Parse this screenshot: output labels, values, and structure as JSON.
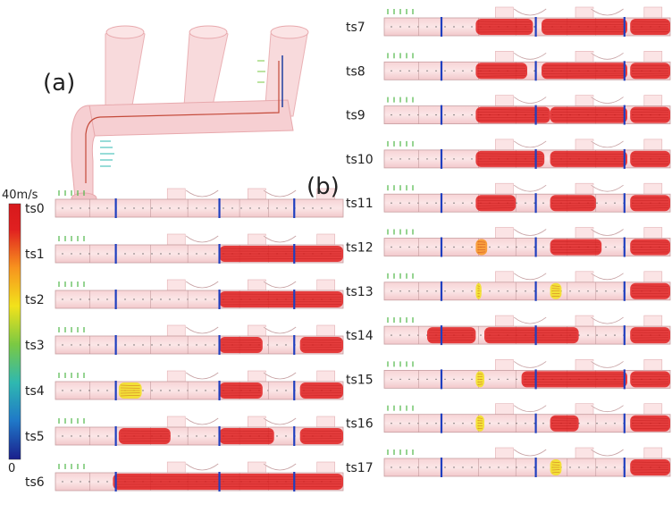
{
  "figure": {
    "panel_a_label": "(a)",
    "panel_b_label": "(b)"
  },
  "colorbar": {
    "max_label": "40m/s",
    "min_label": "0",
    "colors": [
      "#1a1f8c",
      "#1f78c8",
      "#2fb8b0",
      "#7ac943",
      "#f2e21b",
      "#f7931e",
      "#e02020",
      "#d7191c"
    ]
  },
  "timesteps": [
    {
      "label": "ts0",
      "flow": []
    },
    {
      "label": "ts1",
      "flow": [
        [
          0.57,
          1.0,
          1.0
        ]
      ]
    },
    {
      "label": "ts2",
      "flow": [
        [
          0.57,
          1.0,
          1.0
        ]
      ]
    },
    {
      "label": "ts3",
      "flow": [
        [
          0.57,
          0.72,
          1.0
        ],
        [
          0.85,
          1.0,
          1.0
        ]
      ]
    },
    {
      "label": "ts4",
      "flow": [
        [
          0.22,
          0.3,
          0.5
        ],
        [
          0.57,
          0.72,
          1.0
        ],
        [
          0.85,
          1.0,
          1.0
        ]
      ]
    },
    {
      "label": "ts5",
      "flow": [
        [
          0.22,
          0.4,
          0.9
        ],
        [
          0.57,
          0.76,
          1.0
        ],
        [
          0.85,
          1.0,
          1.0
        ]
      ]
    },
    {
      "label": "ts6",
      "flow": [
        [
          0.2,
          1.0,
          1.0
        ]
      ]
    },
    {
      "label": "ts7",
      "flow": [
        [
          0.32,
          0.52,
          1.0
        ],
        [
          0.55,
          0.85,
          1.0
        ],
        [
          0.86,
          1.0,
          1.0
        ]
      ]
    },
    {
      "label": "ts8",
      "flow": [
        [
          0.32,
          0.5,
          1.0
        ],
        [
          0.55,
          0.85,
          1.0
        ],
        [
          0.86,
          1.0,
          1.0
        ]
      ]
    },
    {
      "label": "ts9",
      "flow": [
        [
          0.32,
          0.58,
          1.0
        ],
        [
          0.58,
          0.85,
          1.0
        ],
        [
          0.86,
          1.0,
          1.0
        ]
      ]
    },
    {
      "label": "ts10",
      "flow": [
        [
          0.32,
          0.56,
          1.0
        ],
        [
          0.58,
          0.85,
          1.0
        ],
        [
          0.86,
          1.0,
          1.0
        ]
      ]
    },
    {
      "label": "ts11",
      "flow": [
        [
          0.32,
          0.46,
          1.0
        ],
        [
          0.58,
          0.74,
          1.0
        ],
        [
          0.86,
          1.0,
          1.0
        ]
      ]
    },
    {
      "label": "ts12",
      "flow": [
        [
          0.32,
          0.36,
          0.6
        ],
        [
          0.58,
          0.76,
          1.0
        ],
        [
          0.86,
          1.0,
          1.0
        ]
      ]
    },
    {
      "label": "ts13",
      "flow": [
        [
          0.32,
          0.34,
          0.4
        ],
        [
          0.58,
          0.62,
          0.4
        ],
        [
          0.86,
          1.0,
          1.0
        ]
      ]
    },
    {
      "label": "ts14",
      "flow": [
        [
          0.15,
          0.32,
          1.0
        ],
        [
          0.35,
          0.68,
          1.0
        ],
        [
          0.86,
          1.0,
          1.0
        ]
      ]
    },
    {
      "label": "ts15",
      "flow": [
        [
          0.32,
          0.35,
          0.5
        ],
        [
          0.48,
          0.85,
          1.0
        ],
        [
          0.86,
          1.0,
          1.0
        ]
      ]
    },
    {
      "label": "ts16",
      "flow": [
        [
          0.32,
          0.35,
          0.5
        ],
        [
          0.58,
          0.68,
          1.0
        ],
        [
          0.86,
          1.0,
          1.0
        ]
      ]
    },
    {
      "label": "ts17",
      "flow": [
        [
          0.58,
          0.62,
          0.4
        ],
        [
          0.86,
          1.0,
          1.0
        ]
      ]
    }
  ]
}
